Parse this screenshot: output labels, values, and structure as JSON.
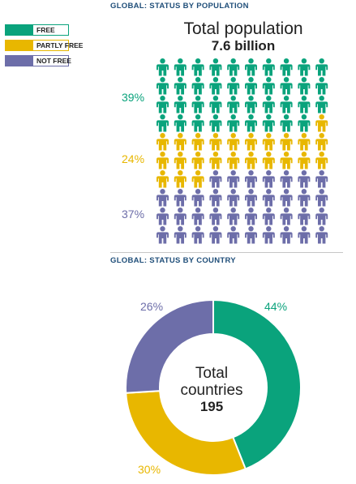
{
  "colors": {
    "free": "#0aa37c",
    "partly_free": "#e8b700",
    "not_free": "#6d6ea9",
    "title": "#1f4e79"
  },
  "legend": [
    {
      "label": "FREE",
      "color": "#0aa37c"
    },
    {
      "label": "PARTLY FREE",
      "color": "#e8b700"
    },
    {
      "label": "NOT FREE",
      "color": "#6d6ea9"
    }
  ],
  "chart_data": [
    {
      "type": "pictograph",
      "title": "GLOBAL: STATUS BY POPULATION",
      "heading": "Total population",
      "total": "7.6 billion",
      "categories": [
        "FREE",
        "PARTLY FREE",
        "NOT FREE"
      ],
      "values": [
        39,
        24,
        37
      ],
      "value_labels": [
        "39%",
        "24%",
        "37%"
      ],
      "unit_icons": 100,
      "grid_columns": 10,
      "grid_rows": 10
    },
    {
      "type": "pie",
      "title": "GLOBAL: STATUS BY COUNTRY",
      "center_line1": "Total",
      "center_line2": "countries",
      "center_total": "195",
      "categories": [
        "FREE",
        "PARTLY FREE",
        "NOT FREE"
      ],
      "values": [
        44,
        30,
        26
      ],
      "value_labels": [
        "44%",
        "30%",
        "26%"
      ],
      "donut": true
    }
  ]
}
